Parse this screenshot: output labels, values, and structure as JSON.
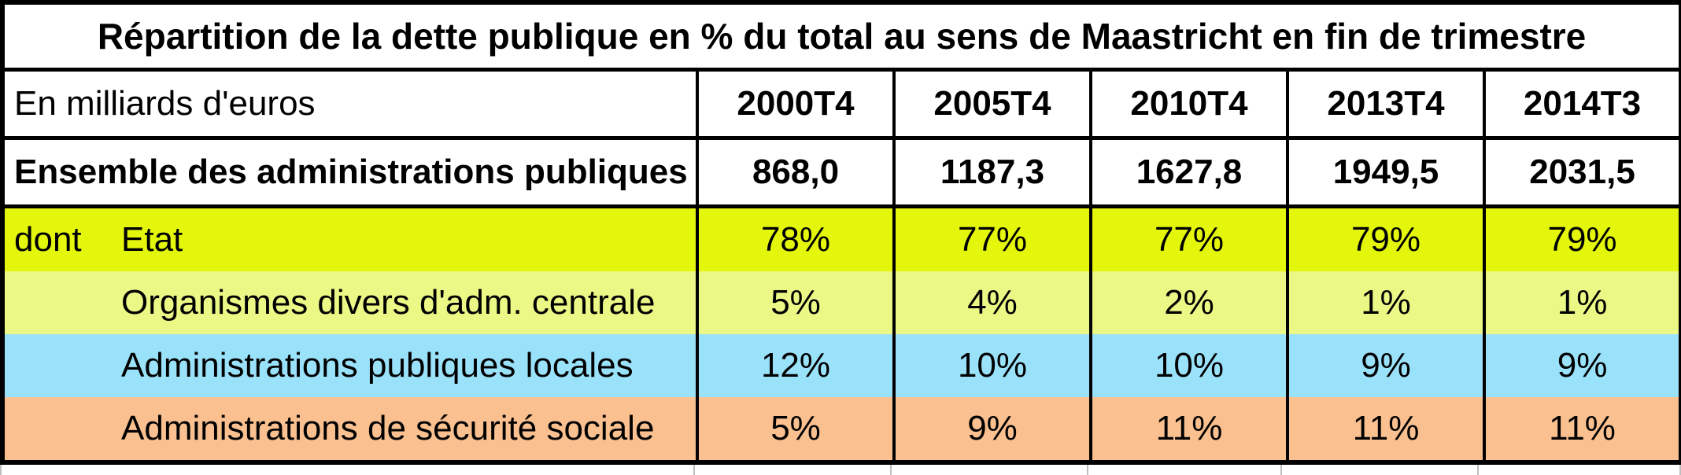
{
  "table": {
    "title": "Répartition de la dette publique en % du total au sens de Maastricht en fin de trimestre",
    "unit_label": "En milliards d'euros",
    "columns": [
      "2000T4",
      "2005T4",
      "2010T4",
      "2013T4",
      "2014T3"
    ],
    "total_row": {
      "label": "Ensemble des administrations publiques",
      "values": [
        "868,0",
        "1187,3",
        "1627,8",
        "1949,5",
        "2031,5"
      ]
    },
    "dont_label": "dont",
    "breakdown_rows": [
      {
        "label": "Etat",
        "values": [
          "78%",
          "77%",
          "77%",
          "79%",
          "79%"
        ],
        "color": "#e4f60b"
      },
      {
        "label": "Organismes divers d'adm. centrale",
        "values": [
          "5%",
          "4%",
          "2%",
          "1%",
          "1%"
        ],
        "color": "#ecf885"
      },
      {
        "label": "Administrations publiques locales",
        "values": [
          "12%",
          "10%",
          "10%",
          "9%",
          "9%"
        ],
        "color": "#9ae1fa"
      },
      {
        "label": "Administrations de sécurité sociale",
        "values": [
          "5%",
          "9%",
          "11%",
          "11%",
          "11%"
        ],
        "color": "#fac08f"
      }
    ],
    "border_color": "#000000",
    "gridline_color": "#bfbfbf"
  },
  "chart_data": {
    "type": "table",
    "title": "Répartition de la dette publique en % du total au sens de Maastricht en fin de trimestre",
    "unit": "En milliards d'euros",
    "columns": [
      "2000T4",
      "2005T4",
      "2010T4",
      "2013T4",
      "2014T3"
    ],
    "rows": [
      {
        "label": "Ensemble des administrations publiques",
        "unit": "milliards d'euros",
        "values": [
          868.0,
          1187.3,
          1627.8,
          1949.5,
          2031.5
        ]
      },
      {
        "label": "Etat",
        "prefix": "dont",
        "unit": "%",
        "values": [
          78,
          77,
          77,
          79,
          79
        ]
      },
      {
        "label": "Organismes divers d'adm. centrale",
        "unit": "%",
        "values": [
          5,
          4,
          2,
          1,
          1
        ]
      },
      {
        "label": "Administrations publiques locales",
        "unit": "%",
        "values": [
          12,
          10,
          10,
          9,
          9
        ]
      },
      {
        "label": "Administrations de sécurité sociale",
        "unit": "%",
        "values": [
          5,
          9,
          11,
          11,
          11
        ]
      }
    ]
  }
}
